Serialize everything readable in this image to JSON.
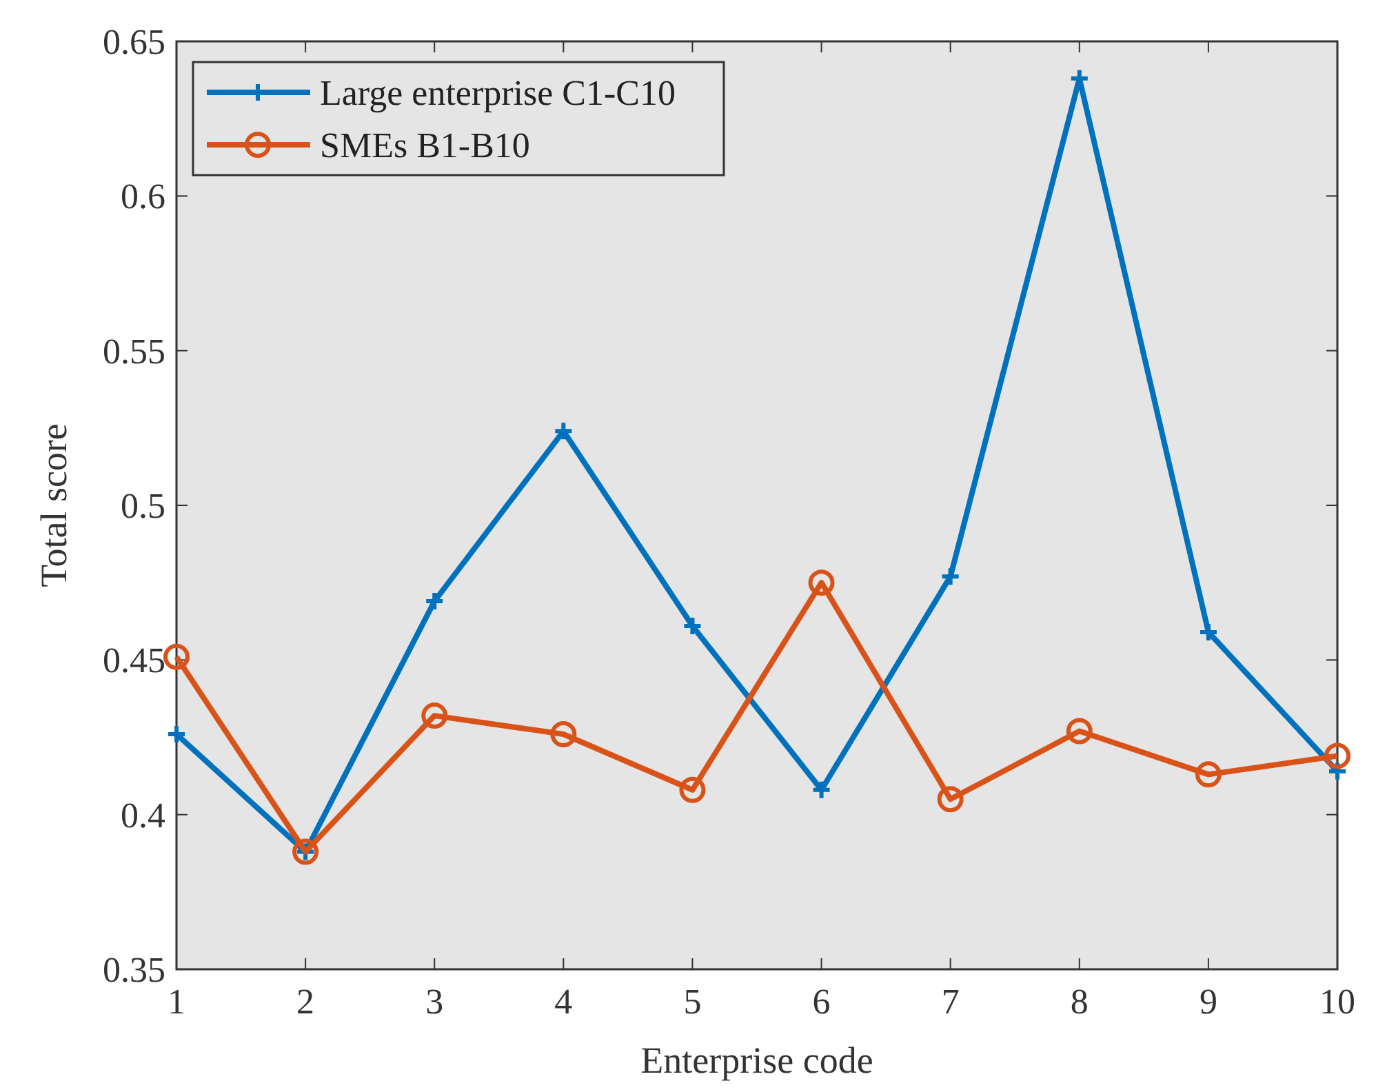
{
  "chart_data": {
    "type": "line",
    "xlabel": "Enterprise code",
    "ylabel": "Total score",
    "x": [
      1,
      2,
      3,
      4,
      5,
      6,
      7,
      8,
      9,
      10
    ],
    "xlim": [
      1,
      10
    ],
    "xticks": [
      1,
      2,
      3,
      4,
      5,
      6,
      7,
      8,
      9,
      10
    ],
    "ylim": [
      0.35,
      0.65
    ],
    "yticks": [
      0.35,
      0.4,
      0.45,
      0.5,
      0.55,
      0.6,
      0.65
    ],
    "series": [
      {
        "name": "Large enterprise C1-C10",
        "color": "#0072bd",
        "marker": "cross",
        "values": [
          0.426,
          0.388,
          0.469,
          0.524,
          0.461,
          0.408,
          0.477,
          0.638,
          0.459,
          0.414
        ]
      },
      {
        "name": "SMEs B1-B10",
        "color": "#d95319",
        "marker": "circle",
        "values": [
          0.451,
          0.388,
          0.432,
          0.426,
          0.408,
          0.475,
          0.405,
          0.427,
          0.413,
          0.419
        ]
      }
    ],
    "grid": false,
    "legend": "top left",
    "line_style": "solid"
  }
}
